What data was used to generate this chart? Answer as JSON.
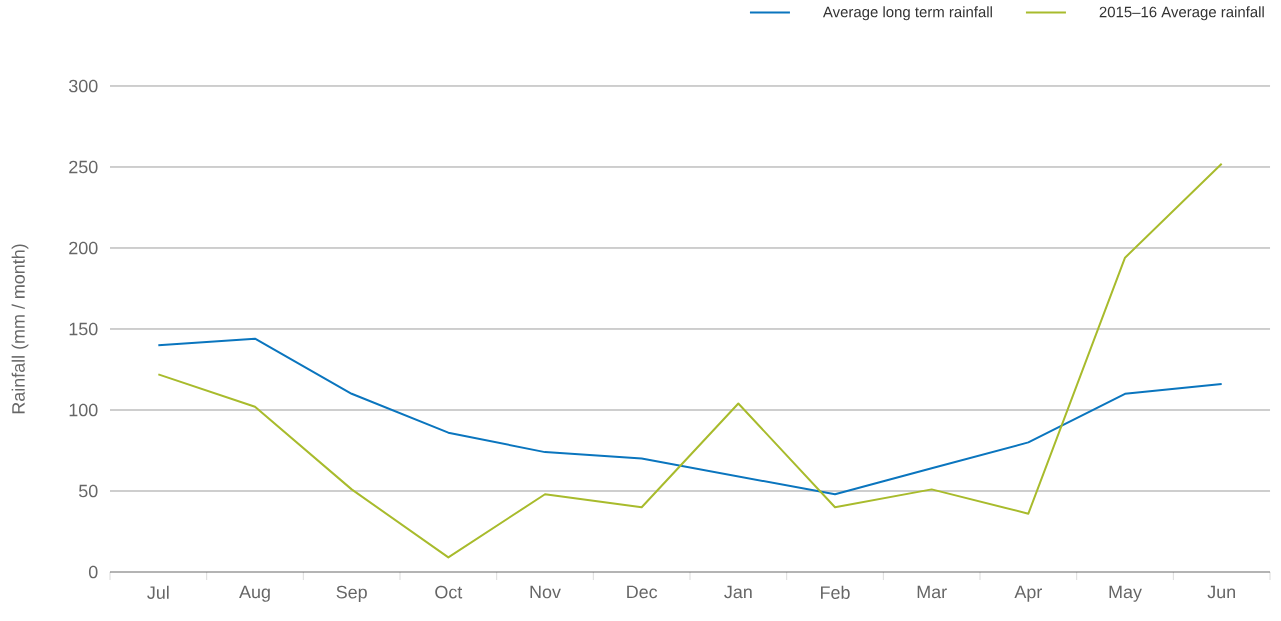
{
  "chart_data": {
    "type": "line",
    "ylabel": "Rainfall (mm / month)",
    "categories": [
      "Jul",
      "Aug",
      "Sep",
      "Oct",
      "Nov",
      "Dec",
      "Jan",
      "Feb",
      "Mar",
      "Apr",
      "May",
      "Jun"
    ],
    "series": [
      {
        "name": "Average long term rainfall",
        "color": "#0a75be",
        "values": [
          140,
          144,
          110,
          86,
          74,
          70,
          59,
          48,
          64,
          80,
          110,
          116
        ]
      },
      {
        "name": "2015–16 Average rainfall",
        "color": "#a8bb2c",
        "values": [
          122,
          102,
          51,
          9,
          48,
          40,
          104,
          40,
          51,
          36,
          194,
          252
        ]
      }
    ],
    "ylim": [
      0,
      300
    ],
    "yticks": [
      0,
      50,
      100,
      150,
      200,
      250,
      300
    ],
    "grid": "y",
    "legend": "top right"
  }
}
